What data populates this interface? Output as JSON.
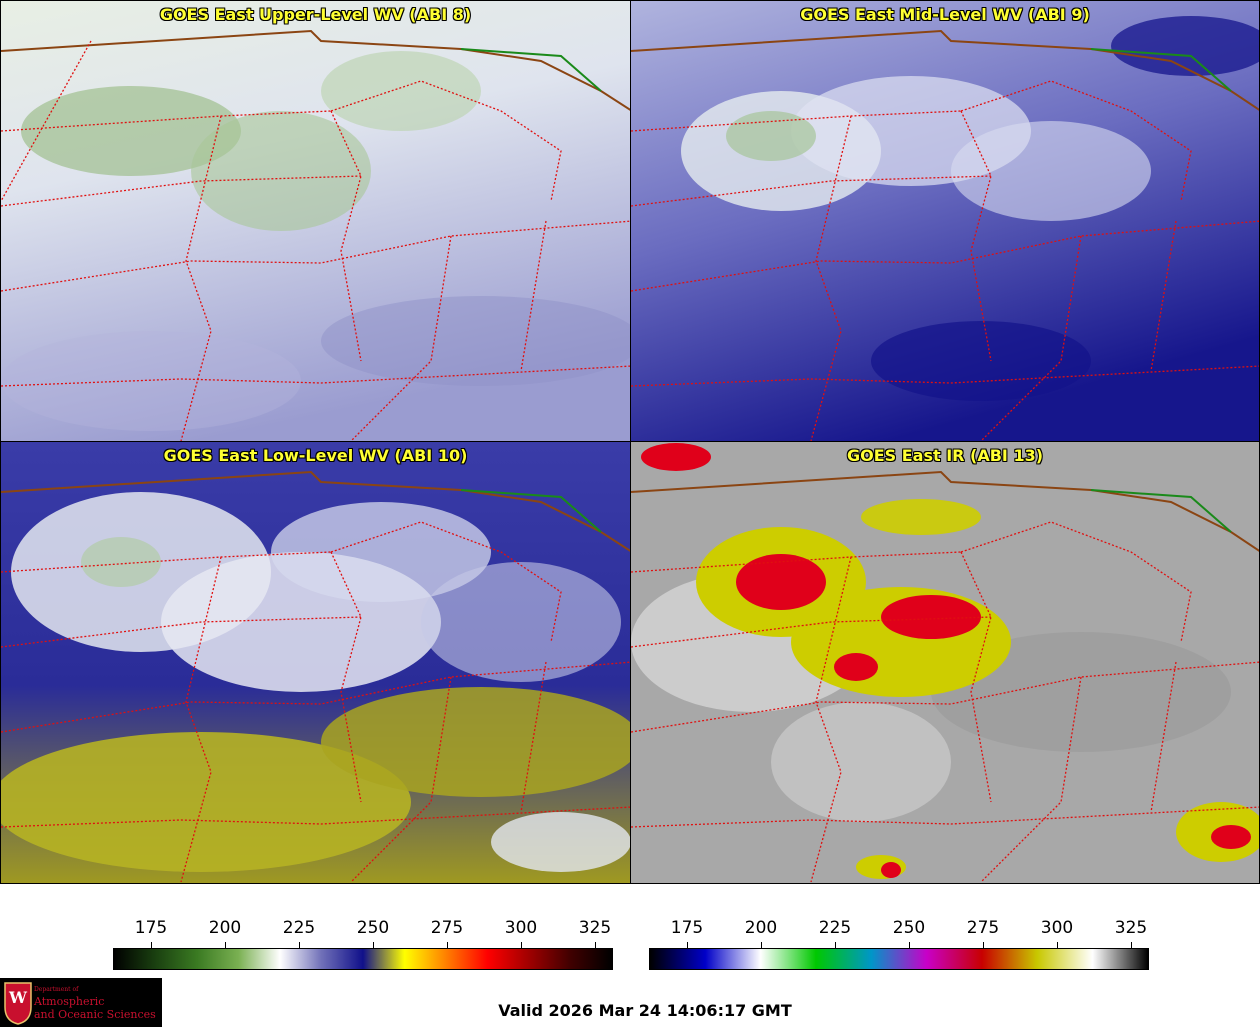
{
  "panels": [
    {
      "title": "GOES East Upper-Level WV (ABI 8)"
    },
    {
      "title": "GOES East Mid-Level WV (ABI 9)"
    },
    {
      "title": "GOES East Low-Level WV (ABI 10)"
    },
    {
      "title": "GOES East IR (ABI 13)"
    }
  ],
  "colorbar_wv": {
    "ticks": [
      "175",
      "200",
      "225",
      "250",
      "275",
      "300",
      "325"
    ],
    "colors": [
      "#000000",
      "#1a4010",
      "#3a7a22",
      "#7ab052",
      "#ffffff",
      "#7070b8",
      "#10108a",
      "#ffff00",
      "#ff8000",
      "#ff0000",
      "#a00000",
      "#400000",
      "#000000"
    ]
  },
  "colorbar_ir": {
    "ticks": [
      "175",
      "200",
      "225",
      "250",
      "275",
      "300",
      "325"
    ],
    "colors": [
      "#000000",
      "#0000c8",
      "#ffffff",
      "#00c800",
      "#0096c8",
      "#c800c8",
      "#c80000",
      "#c8c800",
      "#ffffff",
      "#000000"
    ]
  },
  "footer": {
    "valid": "Valid 2026 Mar 24 14:06:17 GMT",
    "logo_line1": "Department of",
    "logo_line2": "Atmospheric",
    "logo_line3": "and Oceanic Sciences",
    "logo_letter": "W"
  }
}
